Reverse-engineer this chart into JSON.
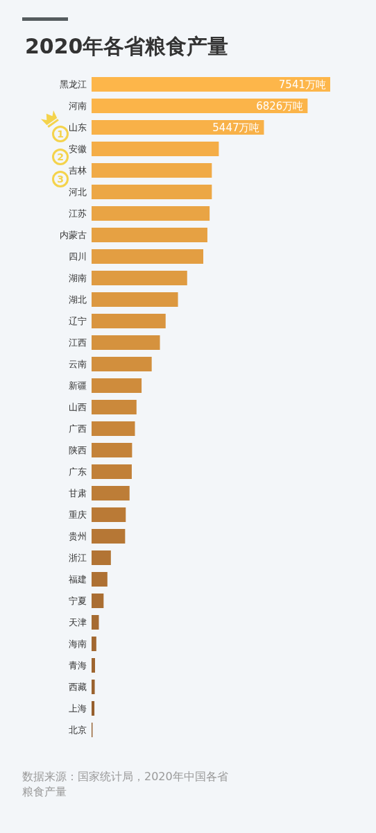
{
  "chart_data": {
    "type": "bar",
    "orientation": "horizontal",
    "title": "2020年各省粮食产量",
    "categories": [
      "黑龙江",
      "河南",
      "山东",
      "安徽",
      "吉林",
      "河北",
      "江苏",
      "内蒙古",
      "四川",
      "湖南",
      "湖北",
      "辽宁",
      "江西",
      "云南",
      "新疆",
      "山西",
      "广西",
      "陕西",
      "广东",
      "甘肃",
      "重庆",
      "贵州",
      "浙江",
      "福建",
      "宁夏",
      "天津",
      "海南",
      "青海",
      "西藏",
      "上海",
      "北京"
    ],
    "values": [
      7541,
      6826,
      5447,
      4020,
      3800,
      3800,
      3730,
      3660,
      3530,
      3020,
      2730,
      2340,
      2160,
      1900,
      1580,
      1420,
      1370,
      1280,
      1270,
      1200,
      1080,
      1060,
      610,
      500,
      380,
      230,
      150,
      110,
      100,
      90,
      30
    ],
    "colors": [
      "#fdb64a",
      "#fbb449",
      "#f8b148",
      "#f4ad47",
      "#f0aa46",
      "#eca745",
      "#e9a444",
      "#e6a143",
      "#e39e42",
      "#df9b41",
      "#dc9840",
      "#d9953f",
      "#d5923e",
      "#d28f3d",
      "#cf8c3c",
      "#cb893b",
      "#c8863a",
      "#c48339",
      "#c18038",
      "#bd7d37",
      "#ba7a36",
      "#b67735",
      "#b27434",
      "#ae7133",
      "#aa6e32",
      "#a66b31",
      "#a26830",
      "#9e652f",
      "#9a622e",
      "#965f2d",
      "#925c2c"
    ],
    "value_labels": [
      "7541万吨",
      "6826万吨",
      "5447万吨",
      null,
      null,
      null,
      null,
      null,
      null,
      null,
      null,
      null,
      null,
      null,
      null,
      null,
      null,
      null,
      null,
      null,
      null,
      null,
      null,
      null,
      null,
      null,
      null,
      null,
      null,
      null,
      null
    ],
    "tick_labels": "y",
    "annotations": [
      "1",
      "2",
      "3",
      "数据来源：国家统计局，2020年中国各省粮食产量"
    ]
  }
}
